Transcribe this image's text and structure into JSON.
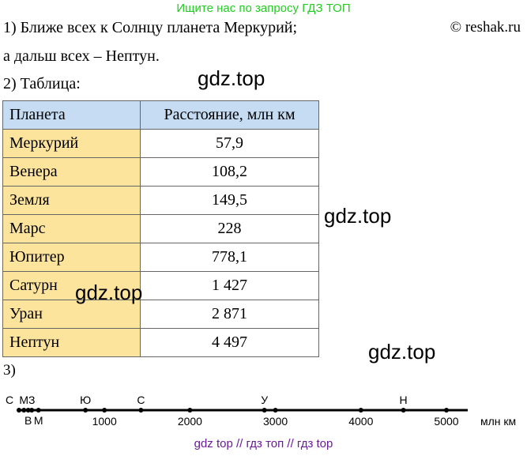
{
  "banner": "Ищите нас по запросу ГДЗ ТОП",
  "copyright": "© reshak.ru",
  "answer1_line1": "1) Ближе всех к Солнцу планета Меркурий;",
  "answer1_line2": "а дальш всех – Нептун.",
  "answer2_label": "2) Таблица:",
  "answer3_label": "3)",
  "watermark": "gdz.top",
  "table": {
    "headers": [
      "Планета",
      "Расстояние, млн км"
    ],
    "rows": [
      {
        "name": "Меркурий",
        "value": "57,9"
      },
      {
        "name": "Венера",
        "value": "108,2"
      },
      {
        "name": "Земля",
        "value": "149,5"
      },
      {
        "name": "Марс",
        "value": "228"
      },
      {
        "name": "Юпитер",
        "value": "778,1"
      },
      {
        "name": "Сатурн",
        "value": "1 427"
      },
      {
        "name": "Уран",
        "value": "2 871"
      },
      {
        "name": "Нептун",
        "value": "4 497"
      }
    ]
  },
  "numberline": {
    "unit": "млн км",
    "max": 5500,
    "ticks": [
      {
        "value": 1000,
        "label": "1000"
      },
      {
        "value": 2000,
        "label": "2000"
      },
      {
        "value": 3000,
        "label": "3000"
      },
      {
        "value": 4000,
        "label": "4000"
      },
      {
        "value": 5000,
        "label": "5000"
      }
    ],
    "points": [
      {
        "value": 0,
        "label": "С",
        "side": "above"
      },
      {
        "value": 57.9,
        "label": "М",
        "side": "above"
      },
      {
        "value": 108.2,
        "label": "В",
        "side": "below"
      },
      {
        "value": 149.5,
        "label": "З",
        "side": "above"
      },
      {
        "value": 228,
        "label": "М",
        "side": "below"
      },
      {
        "value": 778.1,
        "label": "Ю",
        "side": "above"
      },
      {
        "value": 1427,
        "label": "С",
        "side": "above"
      },
      {
        "value": 2871,
        "label": "У",
        "side": "above"
      },
      {
        "value": 4497,
        "label": "Н",
        "side": "above"
      }
    ]
  },
  "footer": "gdz top  //  гдз топ  //  гдз top"
}
